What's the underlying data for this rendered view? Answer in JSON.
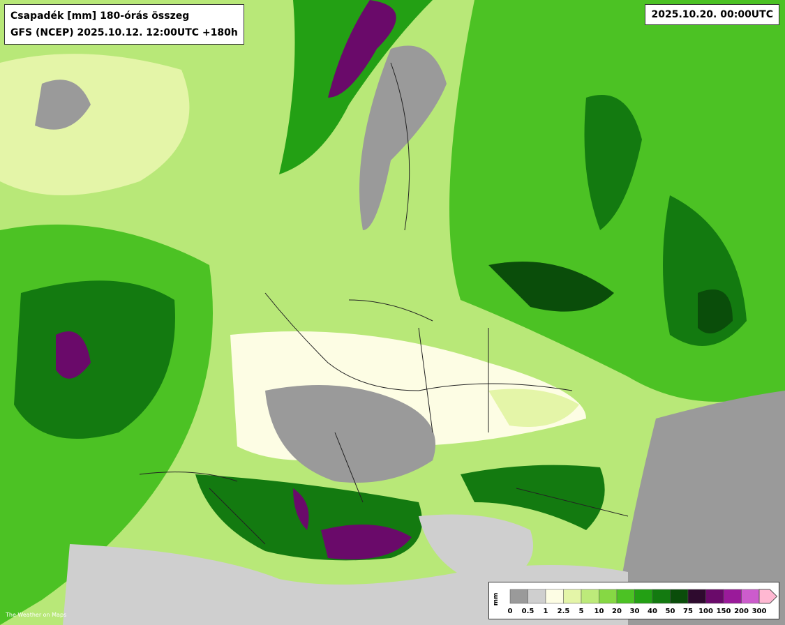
{
  "header": {
    "title": "Csapadék [mm] 180-órás összeg",
    "subtitle": "GFS (NCEP) 2025.10.12. 12:00UTC +180h"
  },
  "valid_time": "2025.10.20. 00:00UTC",
  "legend": {
    "unit": "mm",
    "ticks": [
      0,
      0.5,
      1,
      2.5,
      5,
      10,
      20,
      30,
      40,
      50,
      75,
      100,
      150,
      200,
      300
    ],
    "colors": [
      "#9a9a9a",
      "#cfcfcf",
      "#fdfde4",
      "#e4f5a8",
      "#bdea7a",
      "#86d844",
      "#4cc224",
      "#23a014",
      "#137a10",
      "#0a4d0a",
      "#2e0a2e",
      "#6a0a6a",
      "#9a1a9a",
      "#cc5ccc",
      "#ffb8d2"
    ]
  },
  "logo": "The Weather on Maps"
}
